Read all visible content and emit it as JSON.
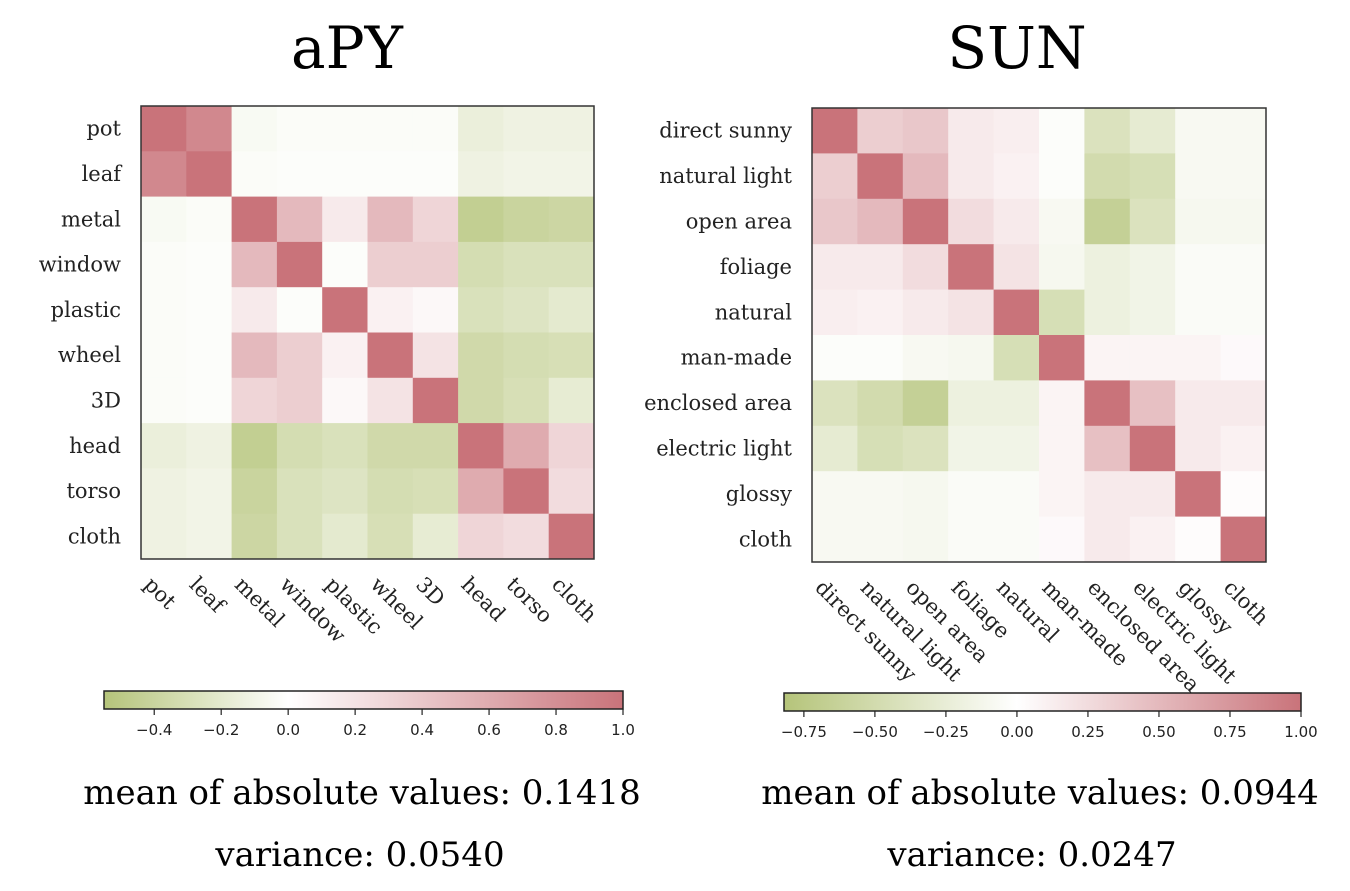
{
  "chart_data": [
    {
      "type": "heatmap",
      "title": "aPY",
      "labels": [
        "pot",
        "leaf",
        "metal",
        "window",
        "plastic",
        "wheel",
        "3D",
        "head",
        "torso",
        "cloth"
      ],
      "matrix": [
        [
          1.0,
          0.85,
          -0.05,
          -0.03,
          -0.03,
          -0.03,
          -0.03,
          -0.15,
          -0.12,
          -0.12
        ],
        [
          0.85,
          1.0,
          -0.03,
          -0.02,
          -0.02,
          -0.02,
          -0.02,
          -0.12,
          -0.1,
          -0.1
        ],
        [
          -0.05,
          -0.03,
          1.0,
          0.5,
          0.15,
          0.5,
          0.3,
          -0.45,
          -0.4,
          -0.38
        ],
        [
          -0.03,
          -0.02,
          0.5,
          1.0,
          -0.02,
          0.35,
          0.35,
          -0.32,
          -0.28,
          -0.28
        ],
        [
          -0.03,
          -0.02,
          0.15,
          -0.02,
          1.0,
          0.1,
          0.05,
          -0.28,
          -0.25,
          -0.2
        ],
        [
          -0.03,
          -0.02,
          0.5,
          0.35,
          0.1,
          1.0,
          0.2,
          -0.35,
          -0.32,
          -0.3
        ],
        [
          -0.03,
          -0.02,
          0.3,
          0.35,
          0.05,
          0.2,
          1.0,
          -0.35,
          -0.3,
          -0.18
        ],
        [
          -0.15,
          -0.12,
          -0.45,
          -0.32,
          -0.28,
          -0.35,
          -0.35,
          1.0,
          0.6,
          0.3
        ],
        [
          -0.12,
          -0.1,
          -0.4,
          -0.28,
          -0.25,
          -0.32,
          -0.3,
          0.6,
          1.0,
          0.25
        ],
        [
          -0.12,
          -0.1,
          -0.38,
          -0.28,
          -0.2,
          -0.3,
          -0.18,
          0.3,
          0.25,
          1.0
        ]
      ],
      "colorbar": {
        "range": [
          -0.55,
          1.0
        ],
        "ticks": [
          -0.4,
          -0.2,
          0.0,
          0.2,
          0.4,
          0.6,
          0.8,
          1.0
        ],
        "tick_labels": [
          "−0.4",
          "−0.2",
          "0.0",
          "0.2",
          "0.4",
          "0.6",
          "0.8",
          "1.0"
        ]
      },
      "mean_label": "mean of absolute values: 0.1418",
      "variance_label": "variance: 0.0540"
    },
    {
      "type": "heatmap",
      "title": "SUN",
      "labels": [
        "direct sunny",
        "natural light",
        "open area",
        "foliage",
        "natural",
        "man-made",
        "enclosed area",
        "electric light",
        "glossy",
        "cloth"
      ],
      "matrix": [
        [
          1.0,
          0.35,
          0.4,
          0.15,
          0.12,
          -0.03,
          -0.4,
          -0.28,
          -0.08,
          -0.08
        ],
        [
          0.35,
          1.0,
          0.5,
          0.15,
          0.1,
          -0.03,
          -0.5,
          -0.45,
          -0.08,
          -0.08
        ],
        [
          0.4,
          0.5,
          1.0,
          0.25,
          0.15,
          -0.08,
          -0.65,
          -0.4,
          -0.1,
          -0.1
        ],
        [
          0.15,
          0.15,
          0.25,
          1.0,
          0.2,
          -0.1,
          -0.2,
          -0.15,
          -0.05,
          -0.05
        ],
        [
          0.12,
          0.1,
          0.15,
          0.2,
          1.0,
          -0.45,
          -0.2,
          -0.15,
          -0.05,
          -0.05
        ],
        [
          -0.03,
          -0.03,
          -0.08,
          -0.1,
          -0.45,
          1.0,
          0.08,
          0.08,
          0.08,
          0.04
        ],
        [
          -0.4,
          -0.5,
          -0.65,
          -0.2,
          -0.2,
          0.08,
          1.0,
          0.45,
          0.15,
          0.15
        ],
        [
          -0.28,
          -0.45,
          -0.4,
          -0.15,
          -0.15,
          0.08,
          0.45,
          1.0,
          0.15,
          0.1
        ],
        [
          -0.08,
          -0.08,
          -0.1,
          -0.05,
          -0.05,
          0.08,
          0.15,
          0.15,
          1.0,
          0.02
        ],
        [
          -0.08,
          -0.08,
          -0.1,
          -0.05,
          -0.05,
          0.04,
          0.15,
          0.1,
          0.02,
          1.0
        ]
      ],
      "colorbar": {
        "range": [
          -0.82,
          1.0
        ],
        "ticks": [
          -0.75,
          -0.5,
          -0.25,
          0.0,
          0.25,
          0.5,
          0.75,
          1.0
        ],
        "tick_labels": [
          "−0.75",
          "−0.50",
          "−0.25",
          "0.00",
          "0.25",
          "0.50",
          "0.75",
          "1.00"
        ]
      },
      "mean_label": "mean of absolute values: 0.0944",
      "variance_label": "variance: 0.0247"
    }
  ],
  "colors": {
    "positive": "#c9737a",
    "zero": "#ffffff",
    "negative": "#b5c47a"
  }
}
